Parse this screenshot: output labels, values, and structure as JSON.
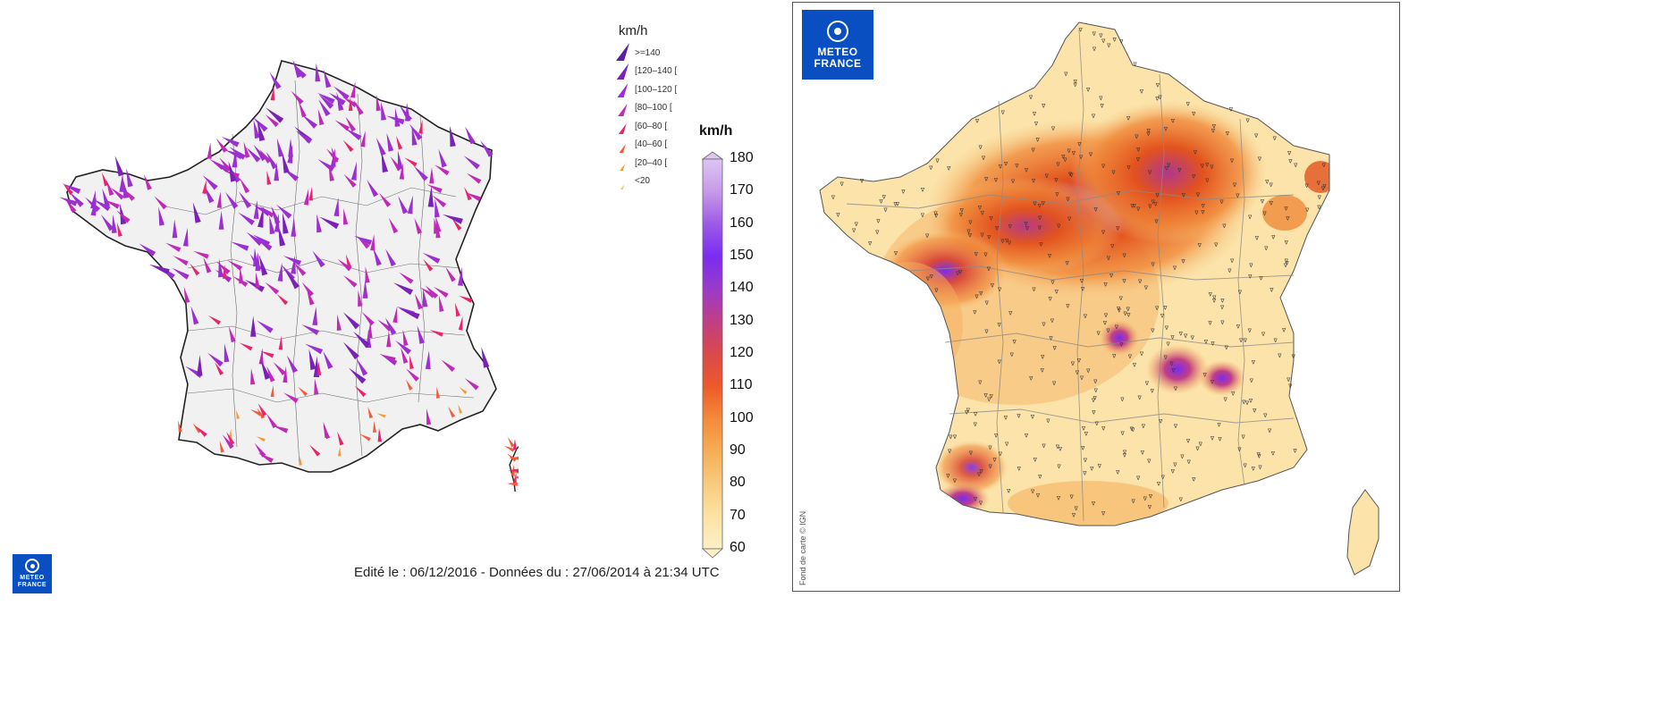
{
  "left_panel": {
    "legend": {
      "unit": "km/h",
      "classes": [
        {
          "label": ">=140",
          "color": "#5b1ca8"
        },
        {
          "label": "[120–140 [",
          "color": "#7a22b8"
        },
        {
          "label": "[100–120 [",
          "color": "#9b2fd0"
        },
        {
          "label": "[80–100 [",
          "color": "#c02ab8"
        },
        {
          "label": "[60–80 [",
          "color": "#e8246e"
        },
        {
          "label": "[40–60 [",
          "color": "#f25a3a"
        },
        {
          "label": "[20–40 [",
          "color": "#f59a38"
        },
        {
          "label": "<20",
          "color": "#f4c74a"
        }
      ]
    },
    "colorbar": {
      "unit": "km/h",
      "ticks": [
        "180",
        "170",
        "160",
        "150",
        "140",
        "130",
        "120",
        "110",
        "100",
        "90",
        "80",
        "70",
        "60"
      ],
      "stops": [
        "#ddc6f2",
        "#c79ae8",
        "#9d5ae6",
        "#7a2cf0",
        "#9a3bc8",
        "#c03e86",
        "#d94a4a",
        "#ec5a2a",
        "#f48a3a",
        "#f6ad56",
        "#f8cb7f",
        "#fce2a4",
        "#fdf0c6"
      ]
    },
    "footer": "Edité le : 06/12/2016 - Données du : 27/06/2014 à 21:34 UTC",
    "logo_text": [
      "METEO",
      "FRANCE"
    ]
  },
  "right_panel": {
    "logo_text": [
      "METEO",
      "FRANCE"
    ],
    "credit": "Fond de carte © IGN"
  }
}
